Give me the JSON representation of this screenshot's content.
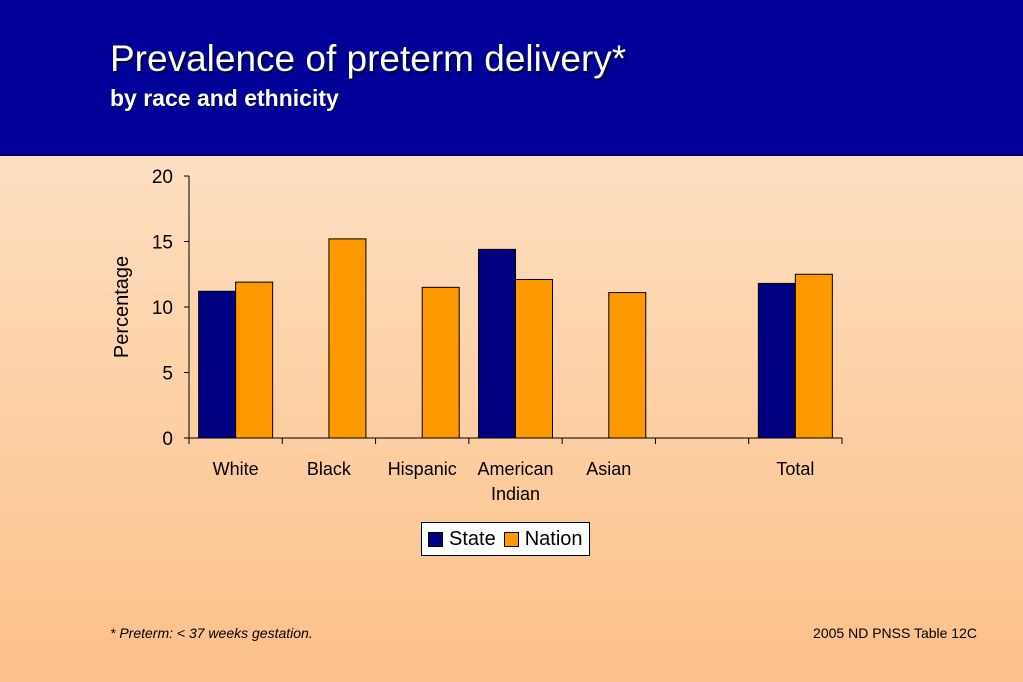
{
  "title": "Prevalence of preterm delivery*",
  "subtitle": "by race and ethnicity",
  "footnote": "*  Preterm: < 37 weeks gestation.",
  "source": "2005 ND PNSS Table 12C",
  "colors": {
    "state": "#000080",
    "nation": "#ff9900",
    "header": "#000099"
  },
  "chart_data": {
    "type": "bar",
    "categories": [
      [
        "White"
      ],
      [
        "Black"
      ],
      [
        "Hispanic"
      ],
      [
        "American",
        "Indian"
      ],
      [
        "Asian"
      ],
      [
        ""
      ],
      [
        "Total"
      ]
    ],
    "series": [
      {
        "name": "State",
        "color": "#000080",
        "values": [
          11.2,
          null,
          null,
          14.4,
          null,
          null,
          11.8
        ]
      },
      {
        "name": "Nation",
        "color": "#ff9900",
        "values": [
          11.9,
          15.2,
          11.5,
          12.1,
          11.1,
          null,
          12.5
        ]
      }
    ],
    "ylabel": "Percentage",
    "xlabel": "",
    "ylim": [
      0,
      20
    ],
    "yticks": [
      0,
      5,
      10,
      15,
      20
    ],
    "grid": false,
    "legend": "bottom-center"
  }
}
